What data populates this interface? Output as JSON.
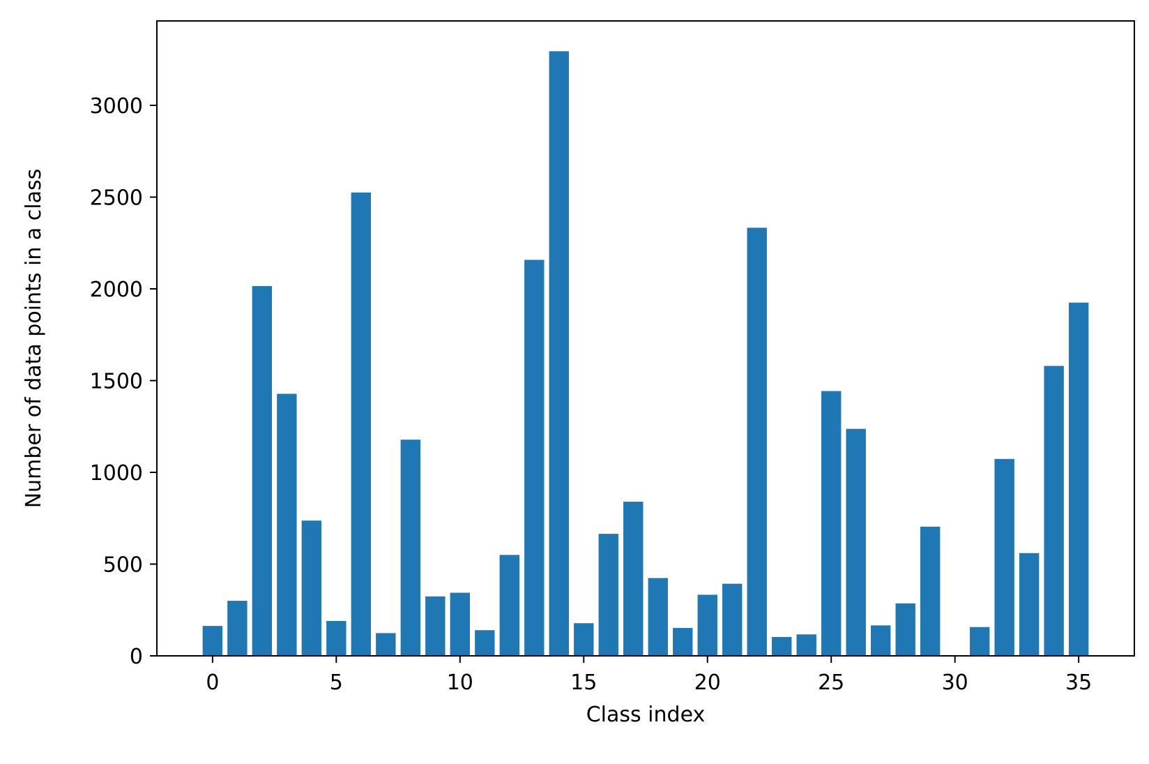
{
  "chart_data": {
    "type": "bar",
    "title": "",
    "xlabel": "Class index",
    "ylabel": "Number of data points in a class",
    "categories": [
      0,
      1,
      2,
      3,
      4,
      5,
      6,
      7,
      8,
      9,
      10,
      11,
      12,
      13,
      14,
      15,
      16,
      17,
      18,
      19,
      20,
      21,
      22,
      23,
      24,
      25,
      26,
      27,
      28,
      29,
      30,
      31,
      32,
      33,
      34,
      35
    ],
    "values": [
      163,
      300,
      2015,
      1428,
      737,
      190,
      2525,
      124,
      1178,
      324,
      344,
      140,
      550,
      2158,
      3295,
      178,
      665,
      840,
      424,
      152,
      333,
      393,
      2333,
      103,
      117,
      1443,
      1237,
      166,
      286,
      704,
      0,
      157,
      1073,
      560,
      1580,
      1925
    ],
    "xlim": [
      -2.25,
      37.25
    ],
    "ylim": [
      0,
      3460
    ],
    "xticks": [
      0,
      5,
      10,
      15,
      20,
      25,
      30,
      35
    ],
    "yticks": [
      0,
      500,
      1000,
      1500,
      2000,
      2500,
      3000
    ],
    "bar_color": "#1f77b4",
    "grid": false,
    "legend": "none"
  }
}
